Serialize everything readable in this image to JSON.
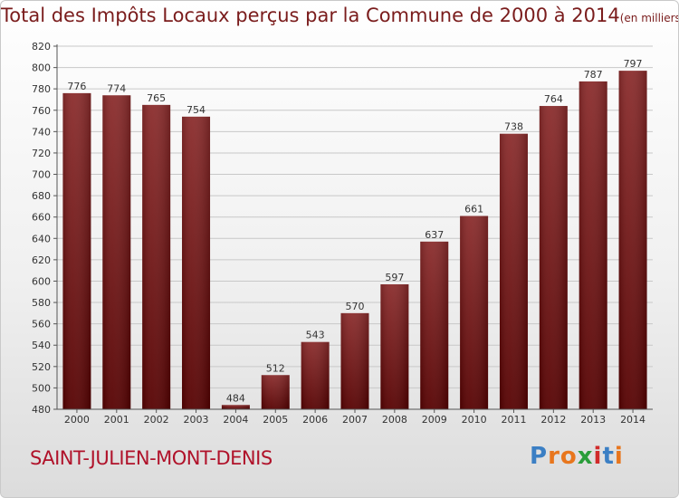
{
  "title": "Total des Impôts Locaux perçus par la Commune de 2000 à 2014",
  "title_unit": "(en milliers d'€)",
  "commune_name": "SAINT-JULIEN-MONT-DENIS",
  "logo": {
    "letters": [
      "P",
      "r",
      "o",
      "x",
      "i",
      "t",
      "i"
    ],
    "colors": [
      "#3b7fc4",
      "#e8761d",
      "#e8761d",
      "#2a9d3a",
      "#d12b2b",
      "#3b7fc4",
      "#e8761d"
    ]
  },
  "colors": {
    "bar_top": "#8a2b2b",
    "bar_bottom": "#550000",
    "title": "#7a1c1c",
    "commune": "#b0122a"
  },
  "chart_data": {
    "type": "bar",
    "categories": [
      "2000",
      "2001",
      "2002",
      "2003",
      "2004",
      "2005",
      "2006",
      "2007",
      "2008",
      "2009",
      "2010",
      "2011",
      "2012",
      "2013",
      "2014"
    ],
    "values": [
      776,
      774,
      765,
      754,
      484,
      512,
      543,
      570,
      597,
      637,
      661,
      738,
      764,
      787,
      797
    ],
    "ylim": [
      480,
      820
    ],
    "yticks": [
      480,
      500,
      520,
      540,
      560,
      580,
      600,
      620,
      640,
      660,
      680,
      700,
      720,
      740,
      760,
      780,
      800,
      820
    ],
    "grid": true,
    "data_labels": true
  }
}
